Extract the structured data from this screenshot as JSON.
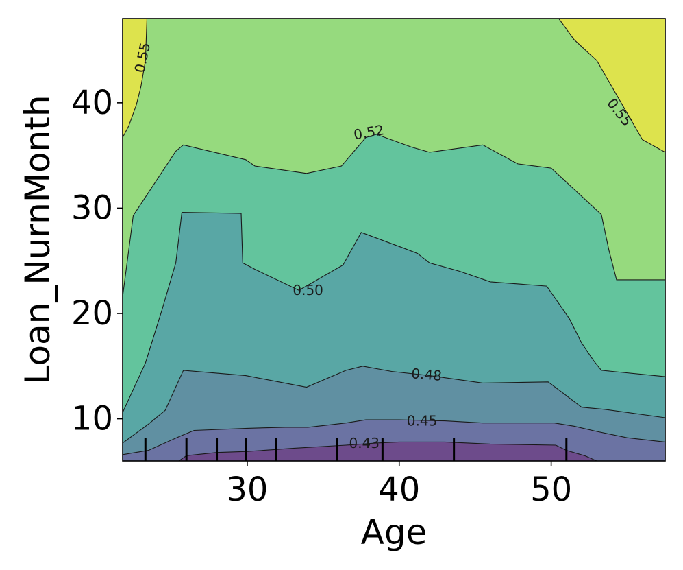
{
  "chart_data": {
    "type": "contour",
    "xlabel": "Age",
    "ylabel": "Loan_NurnMonth",
    "xlim": [
      21.8,
      57.5
    ],
    "ylim": [
      6,
      48
    ],
    "xticks": [
      30,
      40,
      50
    ],
    "yticks": [
      10,
      20,
      30,
      40
    ],
    "colormap": "viridis",
    "contour_labels": [
      {
        "text": "0.55",
        "x": 23.1,
        "y": 44.3,
        "angle": -78
      },
      {
        "text": "0.55",
        "x": 54.5,
        "y": 39.1,
        "angle": 52
      },
      {
        "text": "0.52",
        "x": 38.0,
        "y": 37.2,
        "angle": -10
      },
      {
        "text": "0.50",
        "x": 34.0,
        "y": 22.2,
        "angle": 0
      },
      {
        "text": "0.48",
        "x": 41.8,
        "y": 14.2,
        "angle": 5
      },
      {
        "text": "0.45",
        "x": 41.5,
        "y": 9.8,
        "angle": 0
      },
      {
        "text": "0.43",
        "x": 37.7,
        "y": 7.7,
        "angle": 0
      }
    ],
    "bands": [
      {
        "level": "0.55+",
        "color": "#dde34d",
        "boundary": []
      },
      {
        "level": "0.525-0.55",
        "color": "#96da7e",
        "boundary": [
          [
            21.8,
            36.7
          ],
          [
            22.2,
            37.8
          ],
          [
            22.7,
            39.8
          ],
          [
            23.0,
            41.5
          ],
          [
            23.3,
            44
          ],
          [
            23.4,
            48
          ],
          [
            50.5,
            48
          ],
          [
            51.5,
            46
          ],
          [
            53,
            44
          ],
          [
            54,
            41.5
          ],
          [
            55.2,
            38.5
          ],
          [
            56,
            36.5
          ],
          [
            57.5,
            35.3
          ]
        ]
      },
      {
        "level": "0.50-0.525",
        "color": "#63c49d",
        "boundary": [
          [
            21.8,
            21.6
          ],
          [
            22.5,
            29.3
          ],
          [
            25.3,
            35.4
          ],
          [
            25.8,
            36.0
          ],
          [
            29.9,
            34.6
          ],
          [
            30.5,
            34.0
          ],
          [
            33.9,
            33.3
          ],
          [
            36.2,
            34.0
          ],
          [
            37.8,
            36.7
          ],
          [
            38.5,
            37.0
          ],
          [
            40.8,
            35.8
          ],
          [
            42.0,
            35.3
          ],
          [
            45.5,
            36.0
          ],
          [
            47.8,
            34.2
          ],
          [
            50.0,
            33.8
          ],
          [
            53.3,
            29.4
          ],
          [
            53.8,
            26.0
          ],
          [
            54.3,
            23.2
          ],
          [
            57.5,
            23.2
          ]
        ]
      },
      {
        "level": "0.475-0.50",
        "color": "#59a7a5",
        "boundary": [
          [
            21.8,
            10.6
          ],
          [
            23.3,
            15.3
          ],
          [
            24.4,
            20.4
          ],
          [
            25.3,
            24.8
          ],
          [
            25.7,
            29.6
          ],
          [
            29.6,
            29.5
          ],
          [
            29.7,
            24.8
          ],
          [
            30.5,
            24.2
          ],
          [
            33.4,
            22.2
          ],
          [
            36.3,
            24.6
          ],
          [
            37.5,
            27.7
          ],
          [
            40.3,
            26.2
          ],
          [
            41.2,
            25.7
          ],
          [
            42.0,
            24.8
          ],
          [
            44.0,
            24.0
          ],
          [
            46.0,
            23.0
          ],
          [
            49.7,
            22.6
          ],
          [
            51.2,
            19.5
          ],
          [
            52.0,
            17.2
          ],
          [
            52.8,
            15.5
          ],
          [
            53.3,
            14.6
          ],
          [
            57.5,
            14.0
          ]
        ]
      },
      {
        "level": "0.45-0.475",
        "color": "#6090a2",
        "boundary": [
          [
            21.8,
            7.7
          ],
          [
            23.5,
            9.5
          ],
          [
            24.6,
            10.8
          ],
          [
            25.8,
            14.6
          ],
          [
            29.9,
            14.1
          ],
          [
            33.9,
            13.0
          ],
          [
            36.5,
            14.6
          ],
          [
            37.6,
            15.0
          ],
          [
            39.5,
            14.5
          ],
          [
            42.0,
            14.1
          ],
          [
            45.5,
            13.4
          ],
          [
            49.8,
            13.5
          ],
          [
            51.0,
            12.2
          ],
          [
            52.0,
            11.1
          ],
          [
            53.5,
            10.9
          ],
          [
            57.5,
            10.1
          ]
        ]
      },
      {
        "level": "0.425-0.45",
        "color": "#6b73a3",
        "boundary": [
          [
            21.8,
            6.6
          ],
          [
            23.5,
            7.0
          ],
          [
            25.5,
            8.3
          ],
          [
            26.5,
            8.9
          ],
          [
            30.0,
            9.1
          ],
          [
            32.5,
            9.2
          ],
          [
            34.0,
            9.2
          ],
          [
            36.5,
            9.6
          ],
          [
            37.8,
            9.9
          ],
          [
            40.0,
            9.9
          ],
          [
            43.0,
            9.8
          ],
          [
            45.5,
            9.6
          ],
          [
            48.0,
            9.6
          ],
          [
            50.2,
            9.6
          ],
          [
            51.5,
            9.3
          ],
          [
            53.0,
            8.8
          ],
          [
            55.0,
            8.2
          ],
          [
            57.5,
            7.8
          ]
        ]
      },
      {
        "level": "<0.425",
        "color": "#6d4b8b",
        "boundary": [
          [
            21.8,
            6.0
          ],
          [
            25.5,
            6.0
          ],
          [
            26.0,
            6.5
          ],
          [
            28.0,
            6.8
          ],
          [
            30.0,
            6.9
          ],
          [
            33.0,
            7.2
          ],
          [
            36.5,
            7.5
          ],
          [
            38.5,
            7.7
          ],
          [
            40.0,
            7.8
          ],
          [
            43.0,
            7.8
          ],
          [
            46.0,
            7.6
          ],
          [
            50.3,
            7.5
          ],
          [
            51.0,
            7.0
          ],
          [
            52.2,
            6.5
          ],
          [
            53.0,
            6.0
          ],
          [
            57.5,
            6.0
          ]
        ]
      }
    ],
    "rug_x": [
      23.3,
      26.0,
      28.0,
      29.9,
      31.9,
      35.9,
      38.9,
      43.6,
      51.0
    ]
  }
}
